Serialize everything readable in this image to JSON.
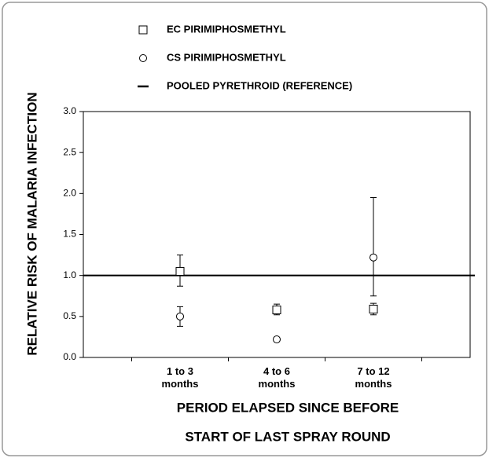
{
  "chart_data": {
    "type": "errorbar",
    "y_label": "RELATIVE RISK OF MALARIA  INFECTION",
    "x_label": [
      "PERIOD ELAPSED SINCE BEFORE",
      "START OF LAST SPRAY ROUND"
    ],
    "categories": [
      "1 to 3 months",
      "4 to 6 months",
      "7 to 12 months"
    ],
    "series": [
      {
        "name": "EC PIRIMIPHOSMETHYL",
        "marker": "square",
        "color": "#000000",
        "values": [
          1.05,
          0.58,
          0.59
        ],
        "lower": [
          0.87,
          0.52,
          0.52
        ],
        "upper": [
          1.25,
          0.65,
          0.66
        ]
      },
      {
        "name": "CS PIRIMIPHOSMETHYL",
        "marker": "circle",
        "color": "#000000",
        "values": [
          0.5,
          0.22,
          1.22
        ],
        "lower": [
          0.38,
          0.2,
          0.75
        ],
        "upper": [
          0.62,
          0.24,
          1.95
        ]
      }
    ],
    "reference": {
      "name": "POOLED PYRETHROID (REFERENCE)",
      "value": 1.0,
      "color": "#000000"
    },
    "ylim": [
      0,
      3
    ],
    "yticks": [
      {
        "value": 0,
        "label": "0.0"
      },
      {
        "value": 0.5,
        "label": "0.5"
      },
      {
        "value": 1,
        "label": "1.0"
      },
      {
        "value": 1.5,
        "label": "1.5"
      },
      {
        "value": 2,
        "label": "2.0"
      },
      {
        "value": 2.5,
        "label": "2.5"
      },
      {
        "value": 3,
        "label": "3.0"
      }
    ]
  }
}
